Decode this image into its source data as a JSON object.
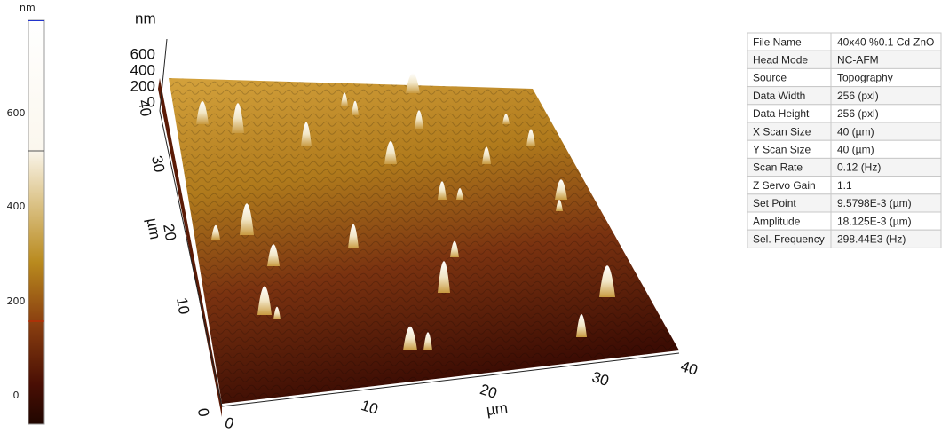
{
  "colorbar": {
    "unit": "nm",
    "ticks": [
      600,
      400,
      200,
      0
    ]
  },
  "surface": {
    "z_axis": {
      "unit": "nm",
      "ticks": [
        600,
        400,
        200,
        0
      ]
    },
    "y_axis": {
      "unit": "µm",
      "ticks": [
        0,
        10,
        20,
        30,
        40
      ]
    },
    "x_axis": {
      "unit": "µm",
      "ticks": [
        0,
        10,
        20,
        30,
        40
      ]
    }
  },
  "table": {
    "rows": [
      [
        "File Name",
        "40x40 %0.1 Cd-ZnO"
      ],
      [
        "Head Mode",
        "NC-AFM"
      ],
      [
        "Source",
        "Topography"
      ],
      [
        "Data Width",
        "256 (pxl)"
      ],
      [
        "Data Height",
        "256 (pxl)"
      ],
      [
        "X Scan Size",
        "40 (µm)"
      ],
      [
        "Y Scan Size",
        "40 (µm)"
      ],
      [
        "Scan Rate",
        "0.12 (Hz)"
      ],
      [
        "Z Servo Gain",
        "1.1"
      ],
      [
        "Set Point",
        "9.5798E-3 (µm)"
      ],
      [
        "Amplitude",
        "18.125E-3 (µm)"
      ],
      [
        "Sel. Frequency",
        "298.44E3 (Hz)"
      ]
    ]
  }
}
